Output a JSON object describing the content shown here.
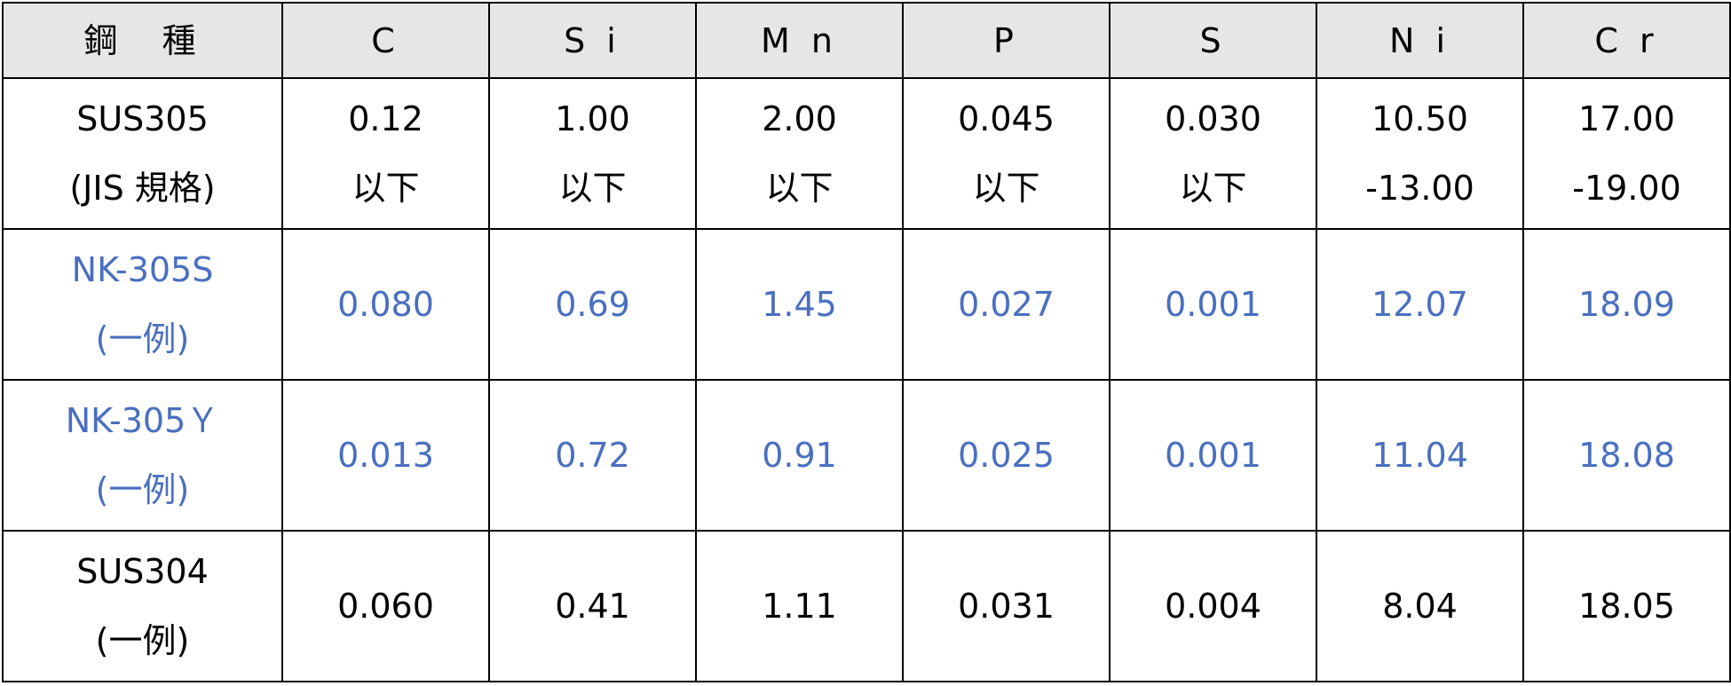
{
  "table": {
    "header": [
      "鋼　種",
      "C",
      "S i",
      "M n",
      "P",
      "S",
      "N i",
      "C r"
    ],
    "rows": [
      [
        [
          "SUS305",
          "(JIS 規格)"
        ],
        [
          "0.12",
          "以下"
        ],
        [
          "1.00",
          "以下"
        ],
        [
          "2.00",
          "以下"
        ],
        [
          "0.045",
          "以下"
        ],
        [
          "0.030",
          "以下"
        ],
        [
          "10.50",
          "-13.00"
        ],
        [
          "17.00",
          "-19.00"
        ]
      ],
      [
        [
          "NK-305S",
          "(一例)"
        ],
        [
          "0.080"
        ],
        [
          "0.69"
        ],
        [
          "1.45"
        ],
        [
          "0.027"
        ],
        [
          "0.001"
        ],
        [
          "12.07"
        ],
        [
          "18.09"
        ]
      ],
      [
        [
          "NK-305Ｙ",
          "(一例)"
        ],
        [
          "0.013"
        ],
        [
          "0.72"
        ],
        [
          "0.91"
        ],
        [
          "0.025"
        ],
        [
          "0.001"
        ],
        [
          "11.04"
        ],
        [
          "18.08"
        ]
      ],
      [
        [
          "SUS304",
          "(一例)"
        ],
        [
          "0.060"
        ],
        [
          "0.41"
        ],
        [
          "1.11"
        ],
        [
          "0.031"
        ],
        [
          "0.004"
        ],
        [
          "8.04"
        ],
        [
          "18.05"
        ]
      ]
    ]
  }
}
